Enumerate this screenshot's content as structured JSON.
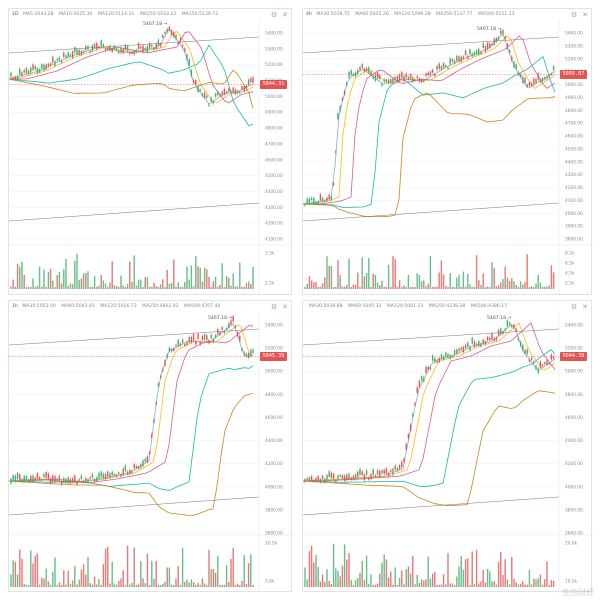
{
  "chart_data": [
    {
      "type": "line",
      "panel": "top-left",
      "legend": [
        {
          "label": "MA5:5043.28",
          "color": "#7aa6c2"
        },
        {
          "label": "MA10:5025.30",
          "color": "#f5b700"
        },
        {
          "label": "MA120:5114.31",
          "color": "#d84a8a"
        },
        {
          "label": "MA250:5033.22",
          "color": "#00b3a4"
        },
        {
          "label": "MA150:5139.72",
          "color": "#c47a00"
        }
      ],
      "legend_prefix": "1D",
      "price_ticks": [
        "5400.00",
        "5300.00",
        "5200.00",
        "5100.00",
        "5000.00",
        "4900.00",
        "4800.00",
        "4700.00",
        "4600.00",
        "4500.00",
        "4400.00",
        "4300.00",
        "4200.00",
        "4100.00"
      ],
      "volume_ticks": [
        "3.3k",
        "2.5k"
      ],
      "high_label": "5467.18",
      "last_price": "5044.31",
      "badge_color": "#e35454",
      "ylim": [
        4100,
        5420
      ]
    },
    {
      "type": "line",
      "panel": "top-right",
      "legend": [
        {
          "label": "MA30:5038.75",
          "color": "#7aa6c2"
        },
        {
          "label": "MA60:5025.26",
          "color": "#f5b700"
        },
        {
          "label": "MA120:5096.28",
          "color": "#d84a8a"
        },
        {
          "label": "MA250:5137.77",
          "color": "#00b3a4"
        },
        {
          "label": "MA500:5151.23",
          "color": "#c47a00"
        }
      ],
      "legend_prefix": "4h",
      "price_ticks": [
        "5400.00",
        "5300.00",
        "5200.00",
        "5100.00",
        "5000.00",
        "4900.00",
        "4800.00",
        "4700.00",
        "4600.00",
        "4500.00",
        "4400.00",
        "4300.00",
        "4200.00",
        "4100.00",
        "4000.00",
        "3900.00",
        "3800.00"
      ],
      "volume_ticks": [
        "8.5k",
        "6.5k",
        "4.5k",
        "2.5k"
      ],
      "high_label": "5467.18",
      "last_price": "5095.87",
      "badge_color": "#e35454",
      "ylim": [
        3800,
        5450
      ]
    },
    {
      "type": "line",
      "panel": "bottom-left",
      "legend": [
        {
          "label": "MA30:5053.00",
          "color": "#7aa6c2"
        },
        {
          "label": "MA60:5043.45",
          "color": "#f5b700"
        },
        {
          "label": "MA120:5016.73",
          "color": "#d84a8a"
        },
        {
          "label": "MA250:4862.92",
          "color": "#00b3a4"
        },
        {
          "label": "MA500:4707.44",
          "color": "#c47a00"
        }
      ],
      "legend_prefix": "1h",
      "price_ticks": [
        "5400.00",
        "5200.00",
        "5000.00",
        "4800.00",
        "4600.00",
        "4400.00",
        "4200.00",
        "4000.00",
        "3800.00",
        "3600.00"
      ],
      "volume_ticks": [
        "10.5k",
        "5.0k"
      ],
      "high_label": "5467.18",
      "last_price": "5045.39",
      "badge_color": "#e35454",
      "ylim": [
        3500,
        5500
      ]
    },
    {
      "type": "line",
      "panel": "bottom-right",
      "legend": [
        {
          "label": "MA30:5038.88",
          "color": "#7aa6c2"
        },
        {
          "label": "MA60:5005.32",
          "color": "#f5b700"
        },
        {
          "label": "MA120:5001.23",
          "color": "#d84a8a"
        },
        {
          "label": "MA250:4238.38",
          "color": "#00b3a4"
        },
        {
          "label": "MA500:4386.17",
          "color": "#c47a00"
        }
      ],
      "legend_prefix": "",
      "price_ticks": [
        "5400.00",
        "5200.00",
        "5000.00",
        "4800.00",
        "4600.00",
        "4400.00",
        "4200.00",
        "4000.00",
        "3800.00",
        "3600.00"
      ],
      "volume_ticks": [
        "20.0k",
        "10.0k"
      ],
      "high_label": "5467.18",
      "last_price": "5044.38",
      "badge_color": "#e35454",
      "ylim": [
        3500,
        5500
      ]
    }
  ],
  "watermark": "金色财经"
}
